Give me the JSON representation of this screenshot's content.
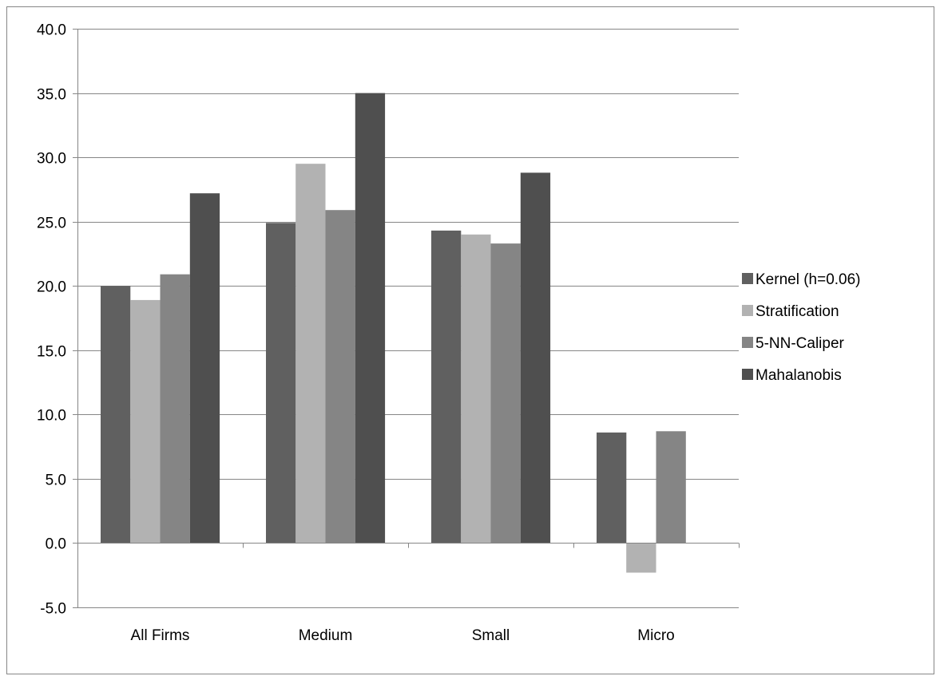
{
  "chart_data": {
    "type": "bar",
    "title": "",
    "xlabel": "",
    "ylabel": "",
    "categories": [
      "All Firms",
      "Medium",
      "Small",
      "Micro"
    ],
    "series": [
      {
        "name": "Kernel (h=0.06)",
        "values": [
          20.0,
          24.9,
          24.3,
          8.6
        ],
        "color": "#606060"
      },
      {
        "name": "Stratification",
        "values": [
          18.9,
          29.5,
          24.0,
          -2.3
        ],
        "color": "#b2b2b2"
      },
      {
        "name": "5-NN-Caliper",
        "values": [
          20.9,
          25.9,
          23.3,
          8.7
        ],
        "color": "#858585"
      },
      {
        "name": "Mahalanobis",
        "values": [
          27.2,
          35.0,
          28.8,
          null
        ],
        "color": "#4f4f4f"
      }
    ],
    "ylim": [
      -5.0,
      40.0
    ],
    "yticks": [
      "-5.0",
      "0.0",
      "5.0",
      "10.0",
      "15.0",
      "20.0",
      "25.0",
      "30.0",
      "35.0",
      "40.0"
    ],
    "grid": true,
    "legend_position": "right"
  }
}
